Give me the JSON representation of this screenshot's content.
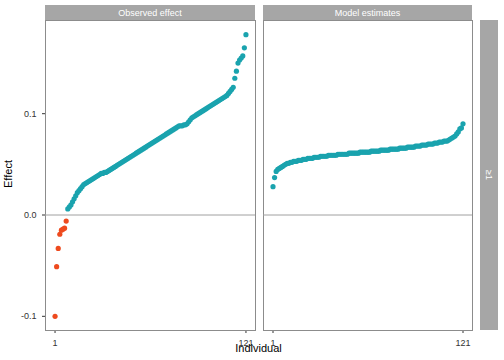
{
  "chart_data": {
    "type": "scatter",
    "x_label": "Individual",
    "y_label": "Effect",
    "row_strip": "≥1",
    "xlim": [
      -5,
      127
    ],
    "xticks": [
      1,
      121
    ],
    "ylim": [
      -0.114,
      0.192
    ],
    "yticks": [
      -0.1,
      {
        "value": 0,
        "label": "0.0"
      },
      0.1
    ],
    "hline": 0,
    "panels": [
      {
        "title": "Observed effect",
        "series": [
          {
            "color": "#EE4A1E",
            "x": [
              1,
              2,
              3,
              4,
              5,
              6,
              7,
              8
            ],
            "values": [
              -0.1,
              -0.051,
              -0.033,
              -0.019,
              -0.015,
              -0.014,
              -0.013,
              -0.006
            ]
          },
          {
            "color": "#1AA3AE",
            "x": [
              9,
              10,
              11,
              12,
              13,
              14,
              15,
              16,
              17,
              18,
              19,
              20,
              21,
              22,
              23,
              24,
              25,
              26,
              27,
              28,
              29,
              30,
              31,
              32,
              33,
              34,
              35,
              36,
              37,
              38,
              39,
              40,
              41,
              42,
              43,
              44,
              45,
              46,
              47,
              48,
              49,
              50,
              51,
              52,
              53,
              54,
              55,
              56,
              57,
              58,
              59,
              60,
              61,
              62,
              63,
              64,
              65,
              66,
              67,
              68,
              69,
              70,
              71,
              72,
              73,
              74,
              75,
              76,
              77,
              78,
              79,
              80,
              81,
              82,
              83,
              84,
              85,
              86,
              87,
              88,
              89,
              90,
              91,
              92,
              93,
              94,
              95,
              96,
              97,
              98,
              99,
              100,
              101,
              102,
              103,
              104,
              105,
              106,
              107,
              108,
              109,
              110,
              111,
              112,
              113,
              114,
              115,
              116,
              117,
              118,
              119,
              120,
              121
            ],
            "values": [
              0.006,
              0.008,
              0.01,
              0.013,
              0.016,
              0.019,
              0.022,
              0.024,
              0.026,
              0.028,
              0.03,
              0.031,
              0.032,
              0.033,
              0.034,
              0.035,
              0.036,
              0.037,
              0.038,
              0.039,
              0.04,
              0.041,
              0.041,
              0.042,
              0.042,
              0.043,
              0.044,
              0.045,
              0.046,
              0.047,
              0.048,
              0.049,
              0.05,
              0.051,
              0.052,
              0.053,
              0.054,
              0.055,
              0.056,
              0.057,
              0.058,
              0.059,
              0.06,
              0.061,
              0.062,
              0.063,
              0.064,
              0.065,
              0.066,
              0.067,
              0.068,
              0.069,
              0.07,
              0.071,
              0.072,
              0.073,
              0.074,
              0.075,
              0.076,
              0.077,
              0.078,
              0.079,
              0.08,
              0.081,
              0.082,
              0.083,
              0.084,
              0.085,
              0.086,
              0.087,
              0.088,
              0.088,
              0.088,
              0.089,
              0.089,
              0.09,
              0.092,
              0.094,
              0.096,
              0.097,
              0.098,
              0.099,
              0.1,
              0.101,
              0.102,
              0.103,
              0.104,
              0.105,
              0.106,
              0.107,
              0.108,
              0.109,
              0.11,
              0.111,
              0.112,
              0.113,
              0.114,
              0.115,
              0.116,
              0.117,
              0.118,
              0.12,
              0.122,
              0.124,
              0.126,
              0.135,
              0.142,
              0.15,
              0.153,
              0.155,
              0.157,
              0.165,
              0.178
            ]
          }
        ]
      },
      {
        "title": "Model estimates",
        "series": [
          {
            "color": "#1AA3AE",
            "x": [
              1,
              2,
              3,
              4,
              5,
              6,
              7,
              8,
              9,
              10,
              11,
              12,
              13,
              14,
              15,
              16,
              17,
              18,
              19,
              20,
              21,
              22,
              23,
              24,
              25,
              26,
              27,
              28,
              29,
              30,
              31,
              32,
              33,
              34,
              35,
              36,
              37,
              38,
              39,
              40,
              41,
              42,
              43,
              44,
              45,
              46,
              47,
              48,
              49,
              50,
              51,
              52,
              53,
              54,
              55,
              56,
              57,
              58,
              59,
              60,
              61,
              62,
              63,
              64,
              65,
              66,
              67,
              68,
              69,
              70,
              71,
              72,
              73,
              74,
              75,
              76,
              77,
              78,
              79,
              80,
              81,
              82,
              83,
              84,
              85,
              86,
              87,
              88,
              89,
              90,
              91,
              92,
              93,
              94,
              95,
              96,
              97,
              98,
              99,
              100,
              101,
              102,
              103,
              104,
              105,
              106,
              107,
              108,
              109,
              110,
              111,
              112,
              113,
              114,
              115,
              116,
              117,
              118,
              119,
              120,
              121
            ],
            "values": [
              0.028,
              0.037,
              0.043,
              0.045,
              0.046,
              0.047,
              0.048,
              0.049,
              0.05,
              0.051,
              0.051,
              0.052,
              0.052,
              0.053,
              0.053,
              0.053,
              0.054,
              0.054,
              0.054,
              0.055,
              0.055,
              0.055,
              0.056,
              0.056,
              0.056,
              0.056,
              0.057,
              0.057,
              0.057,
              0.057,
              0.058,
              0.058,
              0.058,
              0.058,
              0.058,
              0.059,
              0.059,
              0.059,
              0.059,
              0.059,
              0.059,
              0.06,
              0.06,
              0.06,
              0.06,
              0.06,
              0.06,
              0.06,
              0.061,
              0.061,
              0.061,
              0.061,
              0.061,
              0.061,
              0.061,
              0.062,
              0.062,
              0.062,
              0.062,
              0.062,
              0.062,
              0.062,
              0.063,
              0.063,
              0.063,
              0.063,
              0.063,
              0.063,
              0.064,
              0.064,
              0.064,
              0.064,
              0.064,
              0.064,
              0.065,
              0.065,
              0.065,
              0.065,
              0.065,
              0.065,
              0.066,
              0.066,
              0.066,
              0.066,
              0.066,
              0.067,
              0.067,
              0.067,
              0.067,
              0.067,
              0.068,
              0.068,
              0.068,
              0.068,
              0.069,
              0.069,
              0.069,
              0.069,
              0.07,
              0.07,
              0.07,
              0.07,
              0.071,
              0.071,
              0.071,
              0.072,
              0.072,
              0.072,
              0.073,
              0.073,
              0.073,
              0.074,
              0.075,
              0.076,
              0.077,
              0.078,
              0.08,
              0.082,
              0.085,
              0.086,
              0.09
            ]
          }
        ]
      }
    ]
  }
}
